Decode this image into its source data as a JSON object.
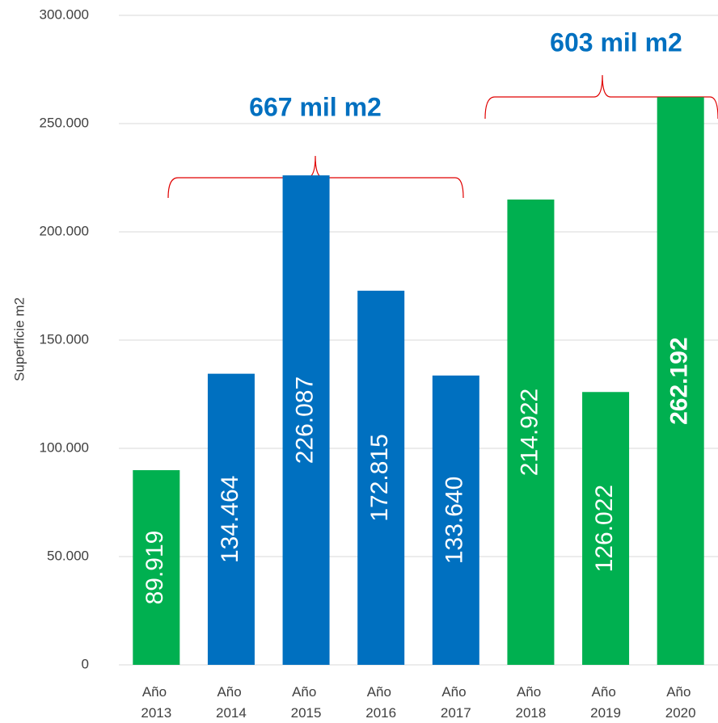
{
  "chart_data": {
    "type": "bar",
    "y_label": "Superficie m2",
    "categories": [
      "Año 2013",
      "Año 2014",
      "Año 2015",
      "Año 2016",
      "Año 2017",
      "Año 2018",
      "Año 2019",
      "Año 2020"
    ],
    "values": [
      89919,
      134464,
      226087,
      172815,
      133640,
      214922,
      126022,
      262192
    ],
    "value_labels": [
      "89.919",
      "134.464",
      "226.087",
      "172.815",
      "133.640",
      "214.922",
      "126.022",
      "262.192"
    ],
    "colors": [
      "#00b050",
      "#0070c0",
      "#0070c0",
      "#0070c0",
      "#0070c0",
      "#00b050",
      "#00b050",
      "#00b050"
    ],
    "annotations": [
      "667 mil m2",
      "603 mil m2"
    ],
    "ylim": [
      0,
      300000
    ],
    "yticks": [
      0,
      {
        "value": 50000,
        "label": "50.000"
      },
      {
        "value": 100000,
        "label": "100.000"
      },
      {
        "value": 150000,
        "label": "150.000"
      },
      {
        "value": 200000,
        "label": "200.000"
      },
      {
        "value": 250000,
        "label": "250.000"
      },
      {
        "value": 300000,
        "label": "300.000"
      }
    ],
    "grid": true
  }
}
